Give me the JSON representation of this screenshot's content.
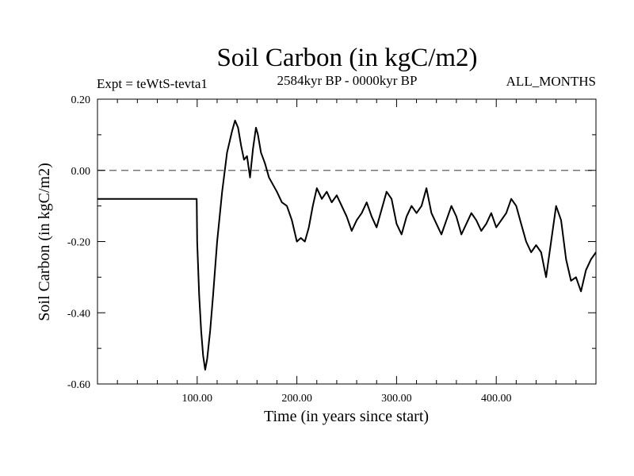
{
  "chart_data": {
    "type": "line",
    "title": "Soil Carbon (in kgC/m2)",
    "subtitle_left": "Expt = teWtS-tevta1",
    "subtitle_center": "2584kyr BP - 0000kyr BP",
    "subtitle_right": "ALL_MONTHS",
    "xlabel": "Time (in years since start)",
    "ylabel": "Soil Carbon (in kgC/m2)",
    "xlim": [
      0,
      500
    ],
    "ylim": [
      -0.6,
      0.2
    ],
    "x_ticks": [
      100,
      200,
      300,
      400
    ],
    "x_tick_labels": [
      "100.00",
      "200.00",
      "300.00",
      "400.00"
    ],
    "x_minor_step": 20,
    "y_ticks": [
      -0.6,
      -0.4,
      -0.2,
      0.0,
      0.2
    ],
    "y_tick_labels": [
      "-0.60",
      "-0.40",
      "-0.20",
      "0.00",
      "0.20"
    ],
    "y_minor_step": 0.1,
    "reference_line": {
      "y": 0.0,
      "style": "dashed"
    },
    "series": [
      {
        "name": "Soil Carbon",
        "x": [
          0,
          99.5,
          100,
          102,
          104,
          106,
          108,
          110,
          113,
          116,
          120,
          125,
          130,
          135,
          138,
          141,
          144,
          147,
          150,
          153,
          156,
          159,
          161,
          164,
          168,
          172,
          176,
          180,
          185,
          190,
          195,
          200,
          204,
          208,
          212,
          216,
          220,
          225,
          230,
          235,
          240,
          245,
          250,
          255,
          260,
          265,
          270,
          275,
          280,
          285,
          290,
          295,
          300,
          305,
          310,
          315,
          320,
          325,
          330,
          335,
          340,
          345,
          350,
          355,
          360,
          365,
          370,
          375,
          380,
          385,
          390,
          395,
          400,
          405,
          410,
          415,
          420,
          425,
          430,
          435,
          440,
          445,
          450,
          455,
          460,
          465,
          470,
          475,
          480,
          485,
          490,
          495,
          500
        ],
        "y": [
          -0.08,
          -0.08,
          -0.2,
          -0.35,
          -0.45,
          -0.52,
          -0.56,
          -0.53,
          -0.45,
          -0.35,
          -0.2,
          -0.06,
          0.05,
          0.11,
          0.14,
          0.12,
          0.07,
          0.03,
          0.04,
          -0.02,
          0.06,
          0.12,
          0.1,
          0.05,
          0.02,
          -0.02,
          -0.04,
          -0.06,
          -0.09,
          -0.1,
          -0.14,
          -0.2,
          -0.19,
          -0.2,
          -0.16,
          -0.1,
          -0.05,
          -0.08,
          -0.06,
          -0.09,
          -0.07,
          -0.1,
          -0.13,
          -0.17,
          -0.14,
          -0.12,
          -0.09,
          -0.13,
          -0.16,
          -0.11,
          -0.06,
          -0.08,
          -0.15,
          -0.18,
          -0.13,
          -0.1,
          -0.12,
          -0.1,
          -0.05,
          -0.12,
          -0.15,
          -0.18,
          -0.14,
          -0.1,
          -0.13,
          -0.18,
          -0.15,
          -0.12,
          -0.14,
          -0.17,
          -0.15,
          -0.12,
          -0.16,
          -0.14,
          -0.12,
          -0.08,
          -0.1,
          -0.15,
          -0.2,
          -0.23,
          -0.21,
          -0.23,
          -0.3,
          -0.2,
          -0.1,
          -0.14,
          -0.25,
          -0.31,
          -0.3,
          -0.34,
          -0.28,
          -0.25,
          -0.23
        ]
      }
    ]
  }
}
